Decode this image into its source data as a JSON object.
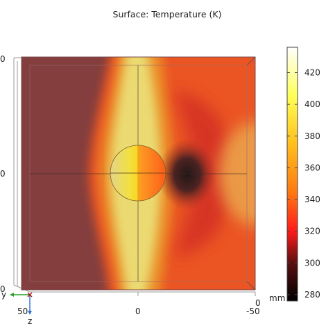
{
  "plot": {
    "title": "Surface: Temperature (K)",
    "colors": {
      "cold_far": "#8a4040",
      "warm": "#ff7a2c",
      "hot": "#fffb86",
      "shadow": "#2a1f1f",
      "axis_x_green": "#2ca02c",
      "axis_z_blue": "#2a6fd6",
      "axis_y_red": "#b01010"
    },
    "sphere": {
      "center_x_mm": 0,
      "center_y_mm": 0,
      "radius_mm": 12.5
    },
    "side_ticks": {
      "top": "0",
      "middle": "0",
      "bottom": "0"
    },
    "bottom_ticks": {
      "left": "50",
      "middle": "0",
      "right": "-50",
      "right_end": "0"
    },
    "unit": "mm"
  },
  "triad": {
    "y_label": "y",
    "z_label": "z"
  },
  "colorbar": {
    "ticks": [
      "420",
      "400",
      "380",
      "360",
      "340",
      "320",
      "300",
      "280"
    ],
    "min": 276,
    "max": 436,
    "tick_values": [
      420,
      400,
      380,
      360,
      340,
      320,
      300,
      280
    ],
    "stops": [
      {
        "v": 276,
        "c": "#000000"
      },
      {
        "v": 300,
        "c": "#5a0f0f"
      },
      {
        "v": 320,
        "c": "#ff1a1a"
      },
      {
        "v": 345,
        "c": "#ff7a12"
      },
      {
        "v": 375,
        "c": "#ffbf1e"
      },
      {
        "v": 405,
        "c": "#ffff55"
      },
      {
        "v": 436,
        "c": "#ffffff"
      }
    ]
  }
}
